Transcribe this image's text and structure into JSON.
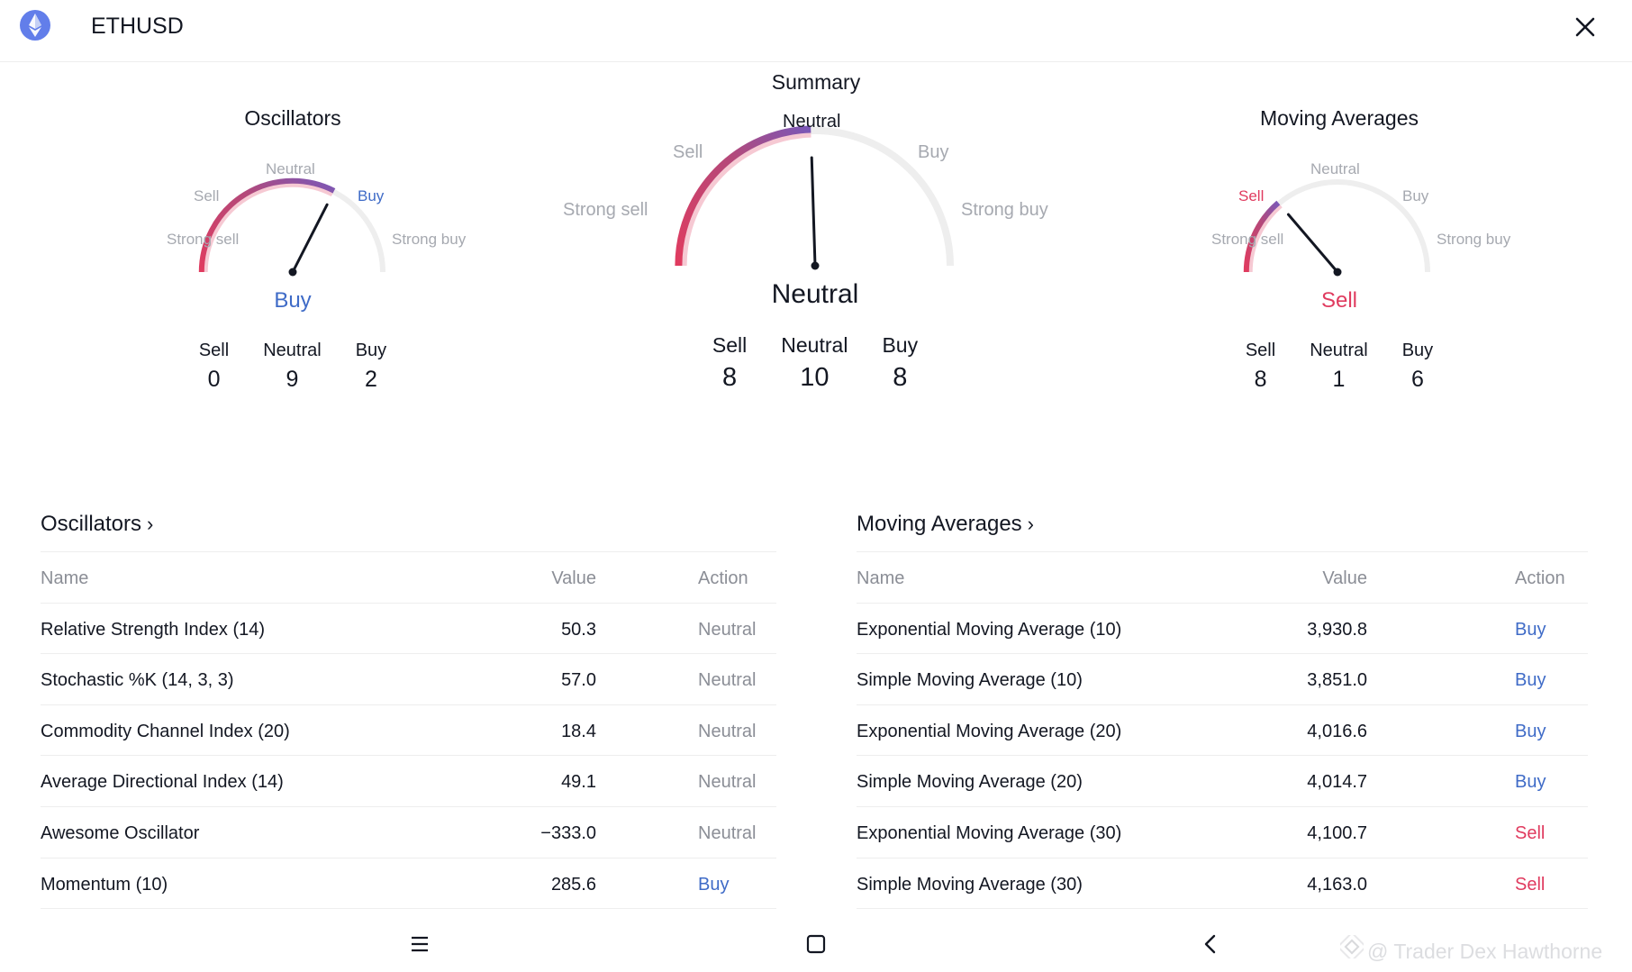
{
  "header": {
    "title": "ETHUSD",
    "logo_icon": "ethereum-logo",
    "close_icon": "close-icon"
  },
  "summary_title": "Summary",
  "gauge_labels": {
    "strong_sell": "Strong sell",
    "sell": "Sell",
    "neutral": "Neutral",
    "buy": "Buy",
    "strong_buy": "Strong buy"
  },
  "gauges": {
    "oscillators": {
      "title": "Oscillators",
      "result": "Buy",
      "result_color": "#3f6bc7",
      "needle_value": 0.3,
      "highlight": "buy",
      "counts": [
        {
          "label": "Sell",
          "value": "0"
        },
        {
          "label": "Neutral",
          "value": "9"
        },
        {
          "label": "Buy",
          "value": "2"
        }
      ]
    },
    "summary": {
      "title": "",
      "result": "Neutral",
      "result_color": "#131722",
      "needle_value": -0.02,
      "highlight": "neutral",
      "counts": [
        {
          "label": "Sell",
          "value": "8"
        },
        {
          "label": "Neutral",
          "value": "10"
        },
        {
          "label": "Buy",
          "value": "8"
        }
      ]
    },
    "moving_averages": {
      "title": "Moving Averages",
      "result": "Sell",
      "result_color": "#e03b5f",
      "needle_value": -0.45,
      "highlight": "sell",
      "counts": [
        {
          "label": "Sell",
          "value": "8"
        },
        {
          "label": "Neutral",
          "value": "1"
        },
        {
          "label": "Buy",
          "value": "6"
        }
      ]
    }
  },
  "oscillators_table": {
    "title": "Oscillators",
    "columns": {
      "name": "Name",
      "value": "Value",
      "action": "Action"
    },
    "rows": [
      {
        "name": "Relative Strength Index (14)",
        "value": "50.3",
        "action": "Neutral"
      },
      {
        "name": "Stochastic %K (14, 3, 3)",
        "value": "57.0",
        "action": "Neutral"
      },
      {
        "name": "Commodity Channel Index (20)",
        "value": "18.4",
        "action": "Neutral"
      },
      {
        "name": "Average Directional Index (14)",
        "value": "49.1",
        "action": "Neutral"
      },
      {
        "name": "Awesome Oscillator",
        "value": "−333.0",
        "action": "Neutral"
      },
      {
        "name": "Momentum (10)",
        "value": "285.6",
        "action": "Buy"
      }
    ]
  },
  "moving_averages_table": {
    "title": "Moving Averages",
    "columns": {
      "name": "Name",
      "value": "Value",
      "action": "Action"
    },
    "rows": [
      {
        "name": "Exponential Moving Average (10)",
        "value": "3,930.8",
        "action": "Buy"
      },
      {
        "name": "Simple Moving Average (10)",
        "value": "3,851.0",
        "action": "Buy"
      },
      {
        "name": "Exponential Moving Average (20)",
        "value": "4,016.6",
        "action": "Buy"
      },
      {
        "name": "Simple Moving Average (20)",
        "value": "4,014.7",
        "action": "Buy"
      },
      {
        "name": "Exponential Moving Average (30)",
        "value": "4,100.7",
        "action": "Sell"
      },
      {
        "name": "Simple Moving Average (30)",
        "value": "4,163.0",
        "action": "Sell"
      }
    ]
  },
  "colors": {
    "buy": "#3f6bc7",
    "sell": "#e03b5f",
    "neutral": "#8b8e96",
    "gauge_track": "#eeeeee"
  },
  "navbar": {
    "menu_icon": "menu-icon",
    "home_icon": "home-square-icon",
    "back_icon": "back-chevron-icon"
  },
  "watermark": "@ Trader Dex Hawthorne"
}
